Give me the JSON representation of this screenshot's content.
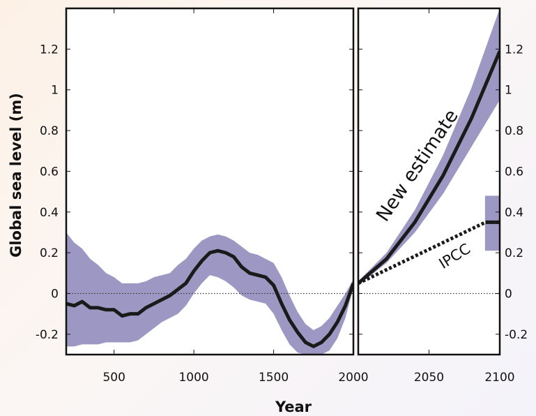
{
  "chart_data": {
    "type": "line",
    "xlabel": "Year",
    "ylabel": "Global sea level (m)",
    "ylim": [
      -0.3,
      1.4
    ],
    "yticks": [
      "-0.2",
      "0",
      "0.2",
      "0.4",
      "0.6",
      "0.8",
      "1",
      "1.2"
    ],
    "panels": [
      {
        "name": "past",
        "xlim": [
          200,
          2000
        ],
        "xticks": [
          "500",
          "1000",
          "1500",
          "2000"
        ],
        "series": [
          {
            "values": [
              {
                "x": 200,
                "y": -0.05,
                "lo": -0.26,
                "hi": 0.3
              },
              {
                "x": 250,
                "y": -0.06,
                "lo": -0.26,
                "hi": 0.25
              },
              {
                "x": 300,
                "y": -0.04,
                "lo": -0.25,
                "hi": 0.22
              },
              {
                "x": 350,
                "y": -0.07,
                "lo": -0.25,
                "hi": 0.17
              },
              {
                "x": 400,
                "y": -0.07,
                "lo": -0.25,
                "hi": 0.14
              },
              {
                "x": 450,
                "y": -0.08,
                "lo": -0.24,
                "hi": 0.1
              },
              {
                "x": 500,
                "y": -0.08,
                "lo": -0.24,
                "hi": 0.08
              },
              {
                "x": 550,
                "y": -0.11,
                "lo": -0.24,
                "hi": 0.05
              },
              {
                "x": 600,
                "y": -0.1,
                "lo": -0.24,
                "hi": 0.05
              },
              {
                "x": 650,
                "y": -0.1,
                "lo": -0.23,
                "hi": 0.05
              },
              {
                "x": 700,
                "y": -0.07,
                "lo": -0.2,
                "hi": 0.06
              },
              {
                "x": 750,
                "y": -0.05,
                "lo": -0.17,
                "hi": 0.08
              },
              {
                "x": 800,
                "y": -0.03,
                "lo": -0.14,
                "hi": 0.09
              },
              {
                "x": 850,
                "y": -0.01,
                "lo": -0.12,
                "hi": 0.1
              },
              {
                "x": 900,
                "y": 0.02,
                "lo": -0.1,
                "hi": 0.14
              },
              {
                "x": 950,
                "y": 0.05,
                "lo": -0.06,
                "hi": 0.17
              },
              {
                "x": 1000,
                "y": 0.11,
                "lo": 0.0,
                "hi": 0.22
              },
              {
                "x": 1050,
                "y": 0.16,
                "lo": 0.05,
                "hi": 0.26
              },
              {
                "x": 1100,
                "y": 0.2,
                "lo": 0.09,
                "hi": 0.28
              },
              {
                "x": 1150,
                "y": 0.21,
                "lo": 0.08,
                "hi": 0.29
              },
              {
                "x": 1200,
                "y": 0.2,
                "lo": 0.06,
                "hi": 0.28
              },
              {
                "x": 1250,
                "y": 0.18,
                "lo": 0.03,
                "hi": 0.26
              },
              {
                "x": 1300,
                "y": 0.13,
                "lo": -0.01,
                "hi": 0.23
              },
              {
                "x": 1350,
                "y": 0.1,
                "lo": -0.03,
                "hi": 0.2
              },
              {
                "x": 1400,
                "y": 0.09,
                "lo": -0.04,
                "hi": 0.19
              },
              {
                "x": 1450,
                "y": 0.08,
                "lo": -0.05,
                "hi": 0.17
              },
              {
                "x": 1500,
                "y": 0.04,
                "lo": -0.1,
                "hi": 0.15
              },
              {
                "x": 1550,
                "y": -0.05,
                "lo": -0.18,
                "hi": 0.08
              },
              {
                "x": 1600,
                "y": -0.13,
                "lo": -0.25,
                "hi": -0.01
              },
              {
                "x": 1650,
                "y": -0.19,
                "lo": -0.29,
                "hi": -0.09
              },
              {
                "x": 1700,
                "y": -0.24,
                "lo": -0.3,
                "hi": -0.15
              },
              {
                "x": 1750,
                "y": -0.26,
                "lo": -0.3,
                "hi": -0.18
              },
              {
                "x": 1800,
                "y": -0.24,
                "lo": -0.3,
                "hi": -0.16
              },
              {
                "x": 1850,
                "y": -0.2,
                "lo": -0.28,
                "hi": -0.12
              },
              {
                "x": 1900,
                "y": -0.14,
                "lo": -0.22,
                "hi": -0.06
              },
              {
                "x": 1950,
                "y": -0.06,
                "lo": -0.12,
                "hi": 0.0
              },
              {
                "x": 2000,
                "y": 0.05,
                "lo": 0.03,
                "hi": 0.07
              }
            ]
          }
        ]
      },
      {
        "name": "projection",
        "xlim": [
          2000,
          2100
        ],
        "xticks": [
          "2050",
          "2100"
        ],
        "series": [
          {
            "name": "New estimate",
            "values": [
              {
                "x": 2000,
                "y": 0.05,
                "lo": 0.04,
                "hi": 0.06
              },
              {
                "x": 2020,
                "y": 0.17,
                "lo": 0.15,
                "hi": 0.2
              },
              {
                "x": 2040,
                "y": 0.35,
                "lo": 0.3,
                "hi": 0.41
              },
              {
                "x": 2060,
                "y": 0.58,
                "lo": 0.49,
                "hi": 0.68
              },
              {
                "x": 2080,
                "y": 0.86,
                "lo": 0.72,
                "hi": 1.01
              },
              {
                "x": 2100,
                "y": 1.19,
                "lo": 0.95,
                "hi": 1.4
              }
            ]
          },
          {
            "name": "IPCC",
            "values": [
              {
                "x": 2000,
                "y": 0.05
              },
              {
                "x": 2090,
                "y": 0.35
              },
              {
                "x": 2100,
                "y": 0.35
              }
            ],
            "range": {
              "x": 2095,
              "lo": 0.21,
              "hi": 0.48
            }
          }
        ]
      }
    ],
    "colors": {
      "band": "#9c98c3",
      "line": "#1a1a1a",
      "zero": "#333333",
      "frame": "#111111"
    }
  }
}
